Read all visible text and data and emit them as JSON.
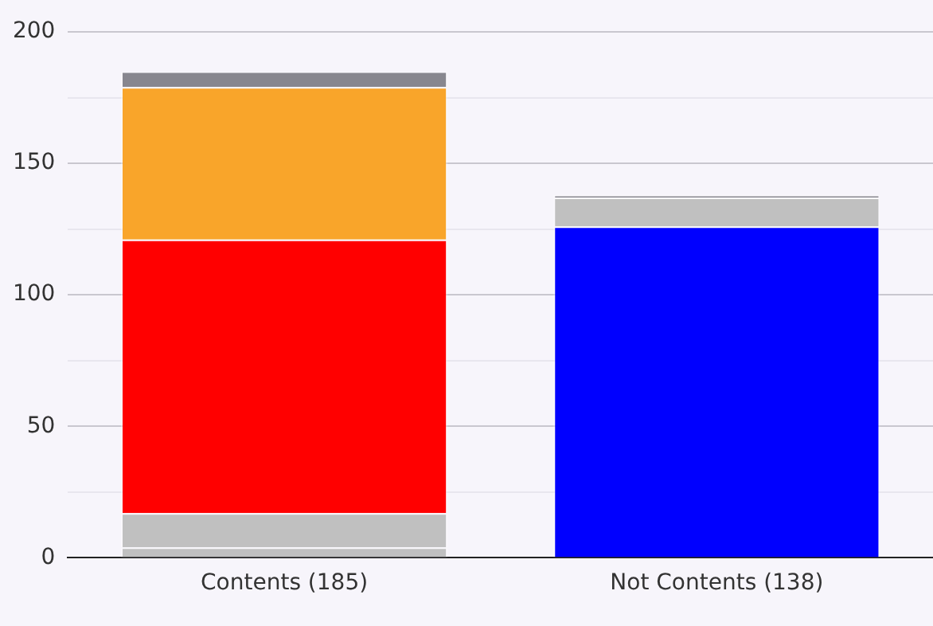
{
  "chart_data": {
    "type": "bar",
    "stacked": true,
    "categories": [
      "Contents (185)",
      "Not Contents (138)"
    ],
    "series": [
      {
        "color": "#c0c0c0",
        "values": [
          4,
          null
        ]
      },
      {
        "color": "#c0c0c0",
        "values": [
          13,
          null
        ]
      },
      {
        "color": "#ff0000",
        "values": [
          104,
          null
        ]
      },
      {
        "color": "#f9a52a",
        "values": [
          58,
          null
        ]
      },
      {
        "color": "#88878f",
        "values": [
          6,
          null
        ]
      },
      {
        "color": "#0000ff",
        "values": [
          null,
          126
        ]
      },
      {
        "color": "#c0c0c0",
        "values": [
          null,
          11
        ]
      },
      {
        "color": "#88878f",
        "values": [
          null,
          1
        ]
      }
    ],
    "ylim": [
      0,
      200
    ],
    "yticks": [
      0,
      {
        "value": 25,
        "label": null
      },
      50,
      {
        "value": 75,
        "label": null
      },
      100,
      {
        "value": 125,
        "label": null
      },
      150,
      {
        "value": 175,
        "label": null
      },
      200
    ],
    "grid": "y",
    "legend": false
  }
}
